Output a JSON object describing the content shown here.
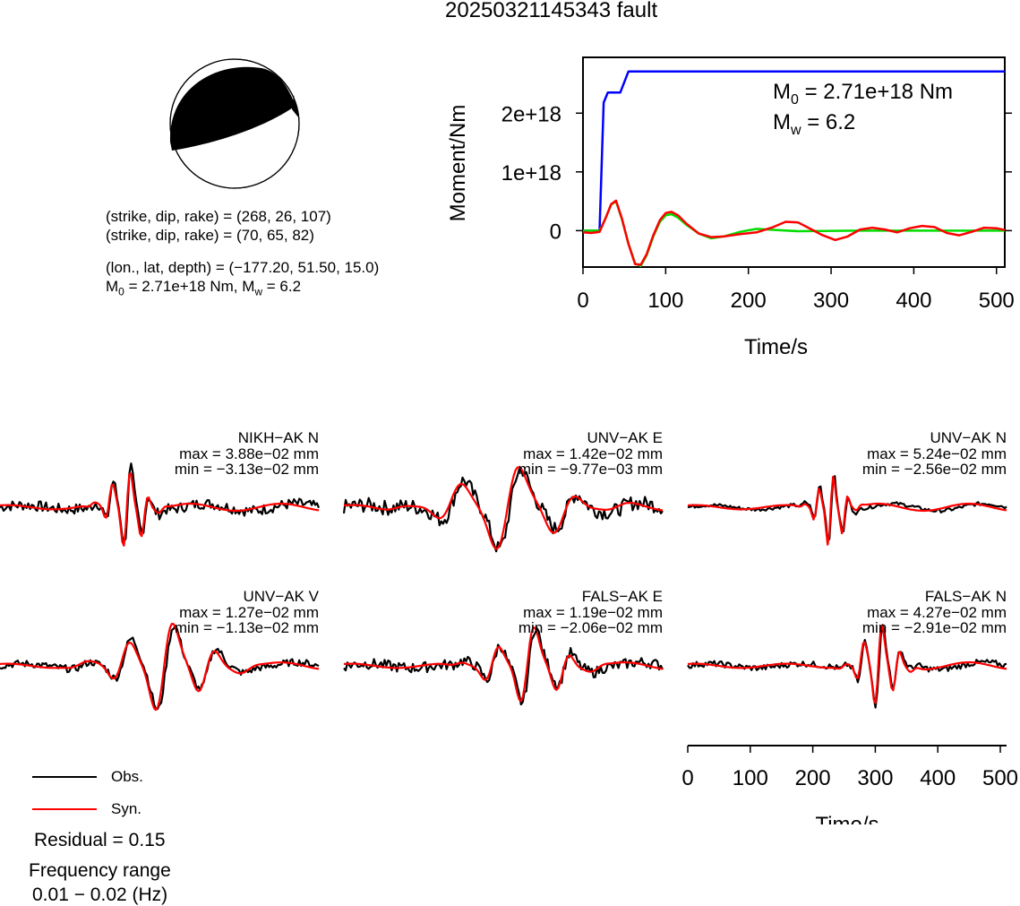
{
  "title": "20250321145343 fault",
  "mechanism": {
    "plane1": "(strike, dip, rake) = (268, 26, 107)",
    "plane2": "(strike, dip, rake) = (70, 65, 82)",
    "location": "(lon., lat, depth) = (−177.20, 51.50, 15.0)",
    "moment_prefix": "M",
    "moment_sub": "0",
    "moment_mid": " = 2.71e+18 Nm, M",
    "moment_sub2": "w",
    "moment_end": " = 6.2"
  },
  "colors": {
    "observed": "#000000",
    "synthetic": "#ff0000",
    "cumulative_moment": "#0000ff",
    "moment_rate": "#00dd00",
    "beachball_fill": "#000000"
  },
  "chart_data": [
    {
      "type": "line",
      "id": "moment-chart",
      "xlabel": "Time/s",
      "ylabel": "Moment/Nm",
      "xlim": [
        0,
        510
      ],
      "ylim": [
        -6.2e+17,
        2.95e+18
      ],
      "xticks": [
        0,
        100,
        200,
        300,
        400,
        500
      ],
      "xtick_labels": [
        "0",
        "100",
        "200",
        "300",
        "400",
        "500"
      ],
      "yticks": [
        0,
        1e+18,
        2e+18
      ],
      "ytick_labels": [
        "0",
        "1e+18",
        "2e+18"
      ],
      "annotation_m0_prefix": "M",
      "annotation_m0_sub": "0",
      "annotation_m0_rest": " = 2.71e+18 Nm",
      "annotation_mw_prefix": "M",
      "annotation_mw_sub": "w",
      "annotation_mw_rest": " = 6.2",
      "series": [
        {
          "key": "cumulative",
          "x": [
            0,
            20,
            25,
            30,
            45,
            55,
            510
          ],
          "y": [
            0,
            0,
            2.18e+18,
            2.35e+18,
            2.35e+18,
            2.71e+18,
            2.71e+18
          ]
        },
        {
          "key": "rate_green",
          "x": [
            0,
            10,
            20,
            27,
            34,
            40,
            47,
            55,
            63,
            70,
            77,
            85,
            93,
            100,
            107,
            115,
            125,
            140,
            155,
            170,
            190,
            210,
            235,
            260,
            290,
            330,
            380,
            430,
            480,
            510
          ],
          "y": [
            0,
            0,
            0,
            2e+17,
            4.4e+17,
            5e+17,
            2e+17,
            -2.2e+17,
            -5.6e+17,
            -6e+17,
            -4.2e+17,
            -1e+17,
            1.5e+17,
            2.6e+17,
            2.8e+17,
            2.2e+17,
            1e+17,
            -5e+16,
            -1.3e+17,
            -1e+17,
            -2e+16,
            3e+16,
            1e+16,
            -1e+16,
            -5000000000000000.0,
            0,
            0,
            0,
            0,
            0
          ]
        },
        {
          "key": "rate_red",
          "x": [
            0,
            10,
            20,
            27,
            34,
            40,
            47,
            55,
            63,
            70,
            77,
            85,
            93,
            100,
            107,
            115,
            125,
            140,
            155,
            170,
            190,
            210,
            230,
            245,
            260,
            275,
            290,
            305,
            320,
            335,
            350,
            365,
            380,
            395,
            410,
            425,
            440,
            455,
            470,
            485,
            500,
            510
          ],
          "y": [
            -3e+16,
            -4e+16,
            -2e+16,
            2e+17,
            4.5e+17,
            5.1e+17,
            2.1e+17,
            -2.3e+17,
            -5.7e+17,
            -5.8e+17,
            -4e+17,
            -8e+16,
            1.8e+17,
            3e+17,
            3.2e+17,
            2.6e+17,
            1.2e+17,
            -5e+16,
            -1.1e+17,
            -1e+17,
            -6e+16,
            -3e+16,
            6e+16,
            1.5e+17,
            1.4e+17,
            3e+16,
            -8e+16,
            -1.6e+17,
            -1e+17,
            2e+16,
            5e+16,
            2e+16,
            -3e+16,
            4e+16,
            8e+16,
            6e+16,
            -4e+16,
            -8e+16,
            -2e+16,
            5e+16,
            4e+16,
            1e+16
          ]
        }
      ]
    },
    {
      "type": "line",
      "id": "time-axis",
      "xlabel": "Time/s",
      "xlim": [
        0,
        510
      ],
      "xticks": [
        0,
        100,
        200,
        300,
        400,
        500
      ],
      "xtick_labels": [
        "0",
        "100",
        "200",
        "300",
        "400",
        "500"
      ]
    }
  ],
  "waveforms": [
    {
      "station": "NIKH−AK N",
      "max": "max = 3.88e−02 mm",
      "min": "min = −3.13e−02 mm"
    },
    {
      "station": "UNV−AK E",
      "max": "max = 1.42e−02 mm",
      "min": "min = −9.77e−03 mm"
    },
    {
      "station": "UNV−AK N",
      "max": "max = 5.24e−02 mm",
      "min": "min = −2.56e−02 mm"
    },
    {
      "station": "UNV−AK V",
      "max": "max = 1.27e−02 mm",
      "min": "min = −1.13e−02 mm"
    },
    {
      "station": "FALS−AK E",
      "max": "max = 1.19e−02 mm",
      "min": "min = −2.06e−02 mm"
    },
    {
      "station": "FALS−AK N",
      "max": "max = 4.27e−02 mm",
      "min": "min = −2.91e−02 mm"
    }
  ],
  "legend": {
    "observed_label": "Obs.",
    "synthetic_label": "Syn."
  },
  "summary": {
    "residual": "Residual = 0.15",
    "frequency_title": "Frequency range",
    "frequency_value": "0.01 − 0.02 (Hz)"
  }
}
